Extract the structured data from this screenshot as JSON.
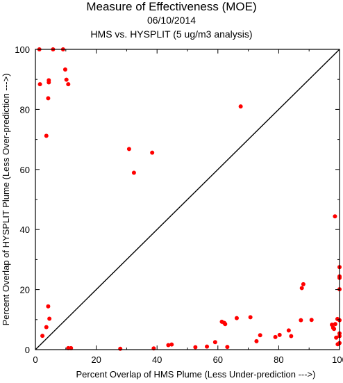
{
  "chart_data": {
    "type": "scatter",
    "title": "Measure of Effectiveness (MOE)",
    "subtitle": "06/10/2014",
    "subtitle2": "HMS vs. HYSPLIT  (5 ug/m3 analysis)",
    "xlabel": "Percent Overlap of HMS Plume (Less Under-prediction --->)",
    "ylabel": "Percent Overlap of HYSPLIT Plume (Less Over-prediction --->)",
    "xlim": [
      0,
      100
    ],
    "ylim": [
      0,
      100
    ],
    "xticks": [
      0,
      20,
      40,
      60,
      80,
      100
    ],
    "yticks": [
      0,
      20,
      40,
      60,
      80,
      100
    ],
    "reference_line": "y = x",
    "marker_color": "#ff0000",
    "line_color": "#000000",
    "series": [
      {
        "x": [
          1.3,
          5.8,
          9.1,
          1.5,
          9.8,
          10.2,
          4.4,
          4.4,
          10.8,
          4.2,
          3.6,
          30.8,
          38.4,
          32.4,
          67.5,
          4.2,
          4.6,
          3.6,
          2.3,
          10.8,
          11.7,
          27.9,
          38.9,
          43.7,
          44.8,
          52.6,
          56.4,
          59.1,
          61.3,
          62.1,
          62.4,
          63.1,
          66.2,
          70.7,
          72.7,
          73.9,
          78.9,
          80.3,
          83.3,
          84.1,
          87.3,
          87.6,
          88.1,
          90.8,
          97.5,
          97.9,
          98.2,
          98.5,
          98.6,
          98.9,
          99.3,
          99.4,
          100.0,
          100.0,
          100.0,
          100.0,
          100.0,
          100.0,
          100.0,
          100.0
        ],
        "y": [
          100.0,
          100.0,
          100.0,
          88.4,
          93.3,
          89.9,
          89.7,
          89.0,
          88.4,
          83.7,
          71.2,
          66.8,
          65.6,
          58.9,
          81.0,
          14.4,
          10.3,
          7.5,
          4.6,
          0.5,
          0.5,
          0.3,
          0.4,
          1.5,
          1.7,
          0.8,
          1.0,
          2.5,
          9.3,
          8.9,
          8.5,
          0.9,
          10.5,
          10.8,
          2.8,
          4.8,
          4.2,
          4.9,
          6.4,
          4.5,
          9.8,
          20.5,
          21.8,
          9.9,
          8.3,
          7.3,
          6.9,
          44.4,
          8.5,
          4.0,
          10.2,
          1.8,
          27.5,
          24.4,
          23.9,
          20.1,
          9.8,
          5.4,
          4.5,
          2.2
        ]
      }
    ]
  }
}
